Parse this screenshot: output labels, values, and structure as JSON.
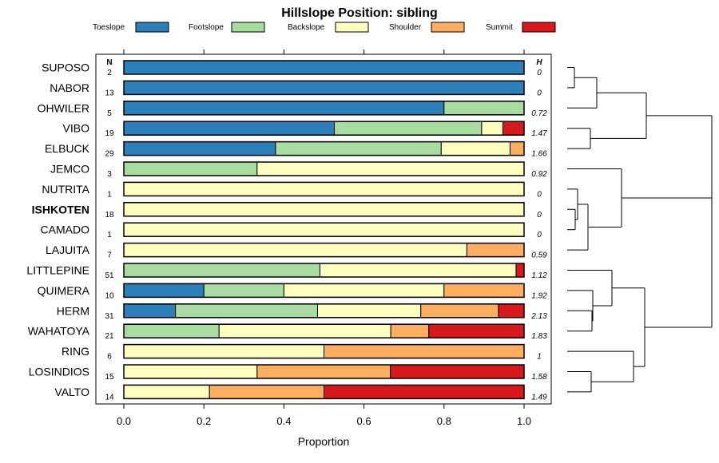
{
  "chart_data": {
    "type": "bar",
    "orientation": "horizontal",
    "stacked": true,
    "title": "Hillslope Position: sibling",
    "xlabel": "Proportion",
    "ylabel": "",
    "xlim": [
      0,
      1
    ],
    "x_ticks": [
      "0.0",
      "0.2",
      "0.4",
      "0.6",
      "0.8",
      "1.0"
    ],
    "n_header": "N",
    "h_header": "H",
    "legend": [
      {
        "name": "Toeslope",
        "color": "#2c7fb8"
      },
      {
        "name": "Footslope",
        "color": "#a8dca0"
      },
      {
        "name": "Backslope",
        "color": "#ffffbf"
      },
      {
        "name": "Shoulder",
        "color": "#fdae61"
      },
      {
        "name": "Summit",
        "color": "#d7191c"
      }
    ],
    "highlight": "ISHKOTEN",
    "categories": [
      "SUPOSO",
      "NABOR",
      "OHWILER",
      "VIBO",
      "ELBUCK",
      "JEMCO",
      "NUTRITA",
      "ISHKOTEN",
      "CAMADO",
      "LAJUITA",
      "LITTLEPINE",
      "QUIMERA",
      "HERM",
      "WAHATOYA",
      "RING",
      "LOSINDIOS",
      "VALTO"
    ],
    "n": [
      "2",
      "13",
      "5",
      "19",
      "29",
      "3",
      "1",
      "18",
      "1",
      "7",
      "51",
      "10",
      "31",
      "21",
      "6",
      "15",
      "14"
    ],
    "h": [
      "0",
      "0",
      "0.72",
      "1.47",
      "1.66",
      "0.92",
      "0",
      "0",
      "0",
      "0.59",
      "1.12",
      "1.92",
      "2.13",
      "1.83",
      "1",
      "1.58",
      "1.49"
    ],
    "series": [
      {
        "name": "Toeslope",
        "values": [
          1,
          1,
          0.8,
          0.526,
          0.379,
          0,
          0,
          0,
          0,
          0,
          0,
          0.2,
          0.129,
          0,
          0,
          0,
          0
        ]
      },
      {
        "name": "Footslope",
        "values": [
          0,
          0,
          0.2,
          0.368,
          0.414,
          0.333,
          0,
          0,
          0,
          0,
          0.49,
          0.2,
          0.355,
          0.238,
          0,
          0,
          0
        ]
      },
      {
        "name": "Backslope",
        "values": [
          0,
          0,
          0,
          0.053,
          0.172,
          0.667,
          1,
          1,
          1,
          0.857,
          0.49,
          0.4,
          0.258,
          0.429,
          0.5,
          0.333,
          0.214
        ]
      },
      {
        "name": "Shoulder",
        "values": [
          0,
          0,
          0,
          0,
          0.035,
          0,
          0,
          0,
          0,
          0.143,
          0,
          0.2,
          0.194,
          0.095,
          0.5,
          0.333,
          0.286
        ]
      },
      {
        "name": "Summit",
        "values": [
          0,
          0,
          0,
          0.053,
          0,
          0,
          0,
          0,
          0,
          0,
          0.02,
          0,
          0.064,
          0.238,
          0,
          0.334,
          0.5
        ]
      }
    ],
    "dendrogram": "hierarchical clustering of series"
  }
}
